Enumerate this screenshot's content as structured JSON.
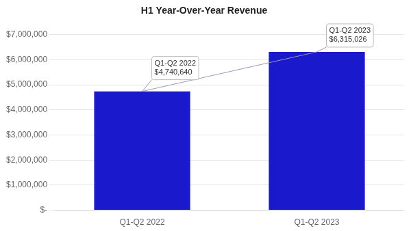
{
  "chart_data": {
    "type": "bar",
    "title": "H1 Year-Over-Year Revenue",
    "categories": [
      "Q1-Q2 2022",
      "Q1-Q2 2023"
    ],
    "values": [
      4740640,
      6315026
    ],
    "color": "#1a1acc",
    "ylim": [
      0,
      7000000
    ],
    "yticks": [
      {
        "value": 0,
        "label": "$-"
      },
      {
        "value": 1000000,
        "label": "$1,000,000"
      },
      {
        "value": 2000000,
        "label": "$2,000,000"
      },
      {
        "value": 3000000,
        "label": "$3,000,000"
      },
      {
        "value": 4000000,
        "label": "$4,000,000"
      },
      {
        "value": 5000000,
        "label": "$5,000,000"
      },
      {
        "value": 6000000,
        "label": "$6,000,000"
      },
      {
        "value": 7000000,
        "label": "$7,000,000"
      }
    ],
    "grid": true,
    "annotations": [
      "Q1-Q2 2022\n$4,740,640",
      "Q1-Q2 2023\n$6,315,026"
    ]
  }
}
